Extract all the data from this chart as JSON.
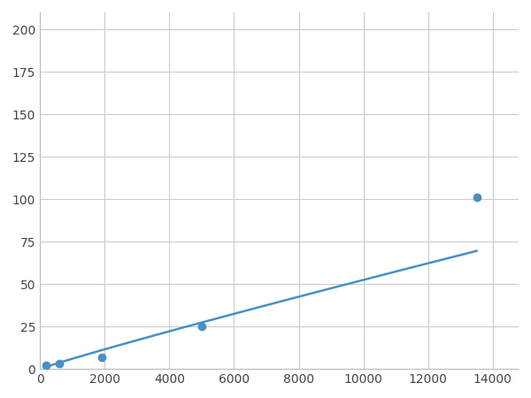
{
  "x_data": [
    200,
    600,
    1900,
    5000,
    13500
  ],
  "y_data": [
    2.0,
    3.0,
    7.0,
    25.0,
    101.0
  ],
  "line_color": "#4a90c4",
  "marker_color": "#4a90c4",
  "marker_size": 6,
  "linewidth": 1.8,
  "xlim": [
    0,
    14800
  ],
  "ylim": [
    0,
    210
  ],
  "xticks": [
    0,
    2000,
    4000,
    6000,
    8000,
    10000,
    12000,
    14000
  ],
  "yticks": [
    0,
    25,
    50,
    75,
    100,
    125,
    150,
    175,
    200
  ],
  "grid_color": "#cccccc",
  "background_color": "#ffffff",
  "figsize": [
    6.0,
    4.5
  ],
  "dpi": 100
}
